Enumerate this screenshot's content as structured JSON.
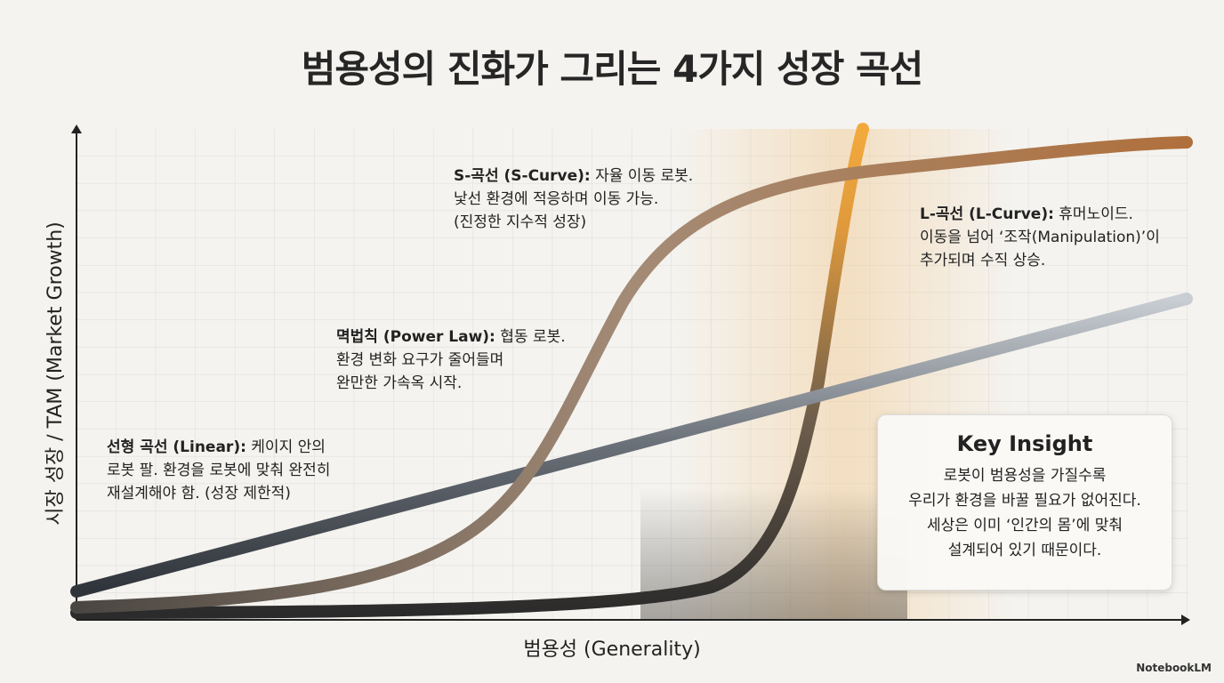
{
  "title": "범용성의 진화가 그리는 4가지 성장 곡선",
  "axes": {
    "y_label": "시장 성장 / TAM (Market Growth)",
    "x_label": "범용성 (Generality)"
  },
  "annotations": [
    {
      "heading": "S-곡선 (S-Curve):",
      "lines": [
        " 자율 이동 로봇.",
        "낯선 환경에 적응하며 이동 가능.",
        "(진정한 지수적 성장)"
      ]
    },
    {
      "heading": "멱법칙 (Power Law):",
      "lines": [
        " 협동 로봇.",
        "환경 변화 요구가 줄어들며",
        "완만한 가속옥 시작."
      ]
    },
    {
      "heading": "선형 곡선 (Linear):",
      "lines": [
        " 케이지 안의",
        "로봇 팔. 환경을 로봇에 맞춰 완전히",
        "재설계해야 함. (성장 제한적)"
      ]
    },
    {
      "heading": "L-곡선 (L-Curve):",
      "lines": [
        " 휴머노이드.",
        "이동을 넘어 ‘조작(Manipulation)’이",
        "추가되며 수직 상승."
      ]
    }
  ],
  "insight": {
    "title": "Key Insight",
    "lines": [
      "로봇이 범용성을 가질수록",
      "우리가 환경을 바꿀 필요가 없어진다.",
      "세상은 이미 ‘인간의 몸’에 맞춰",
      "설계되어 있기 때문이다."
    ]
  },
  "brand": "NotebookLM"
}
